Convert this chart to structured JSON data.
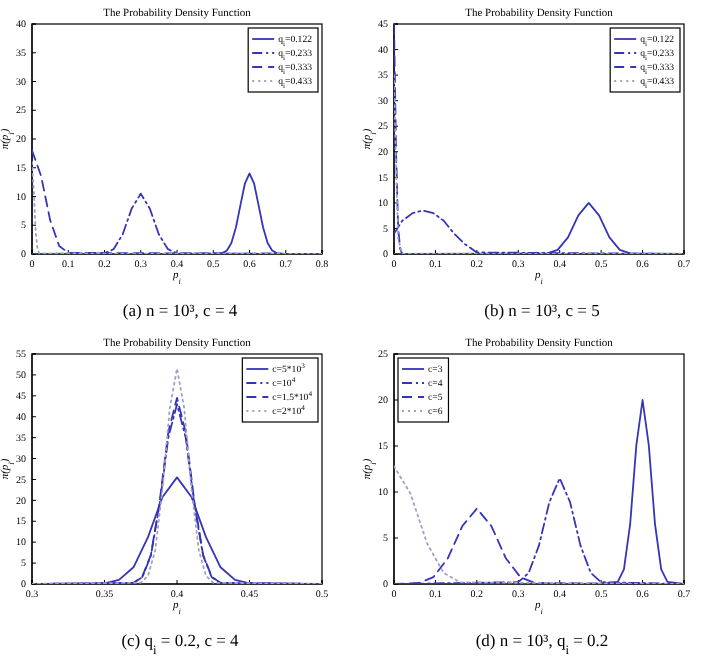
{
  "chart_data": [
    {
      "type": "line",
      "title": "The Probability Density Function",
      "xlabel": "p$_{i}$",
      "ylabel": "π(p$_{i}$)",
      "xlim": [
        0,
        0.8
      ],
      "ylim": [
        0,
        40
      ],
      "xticks": [
        0,
        0.1,
        0.2,
        0.3,
        0.4,
        0.5,
        0.6,
        0.7,
        0.8
      ],
      "yticks": [
        0,
        5,
        10,
        15,
        20,
        25,
        30,
        35,
        40
      ],
      "grid": false,
      "legend": "top right",
      "marker": "none",
      "annotations": [
        "(a) n = 10³, c = 4"
      ],
      "series": [
        {
          "name": "q$_{i}$=0.122",
          "color": "#3535b8",
          "line_style": "solid",
          "x": [
            0,
            0.5,
            0.525,
            0.5375,
            0.55,
            0.5625,
            0.575,
            0.5875,
            0.6,
            0.6125,
            0.625,
            0.6375,
            0.65,
            0.6625,
            0.675,
            0.7,
            0.8
          ],
          "values": [
            0,
            0,
            0.15,
            0.6,
            1.9,
            4.6,
            8.5,
            12.3,
            14,
            12.3,
            8.5,
            4.6,
            1.9,
            0.6,
            0.15,
            0,
            0
          ]
        },
        {
          "name": "q$_{i}$=0.233",
          "color": "#3535b8",
          "line_style": "dashdot",
          "x": [
            0,
            0.2,
            0.225,
            0.25,
            0.275,
            0.3,
            0.325,
            0.35,
            0.375,
            0.4,
            0.8
          ],
          "values": [
            0,
            0.12,
            0.84,
            3.4,
            7.9,
            10.5,
            7.9,
            3.4,
            0.84,
            0.12,
            0
          ]
        },
        {
          "name": "q$_{i}$=0.333",
          "color": "#3535b8",
          "line_style": "dashed",
          "x": [
            0,
            0.025,
            0.05,
            0.075,
            0.1,
            0.8
          ],
          "values": [
            18,
            13.6,
            5.9,
            1.4,
            0.2,
            0
          ]
        },
        {
          "name": "q$_{i}$=0.433",
          "color": "#a0a0c8",
          "line_style": "dotted",
          "x": [
            0,
            0.005,
            0.01,
            0.015,
            0.02,
            0.8
          ],
          "values": [
            16,
            11,
            4,
            1,
            0.1,
            0
          ]
        }
      ]
    },
    {
      "type": "line",
      "title": "The Probability Density Function",
      "xlabel": "p$_{i}$",
      "ylabel": "π(p$_{i}$)",
      "xlim": [
        0,
        0.7
      ],
      "ylim": [
        0,
        45
      ],
      "xticks": [
        0,
        0.1,
        0.2,
        0.3,
        0.4,
        0.5,
        0.6,
        0.7
      ],
      "yticks": [
        0,
        5,
        10,
        15,
        20,
        25,
        30,
        35,
        40,
        45
      ],
      "grid": false,
      "legend": "top right",
      "marker": "none",
      "annotations": [
        "(b) n = 10³, c = 5"
      ],
      "series": [
        {
          "name": "q$_{i}$=0.122",
          "color": "#3535b8",
          "line_style": "solid",
          "x": [
            0,
            0.37,
            0.395,
            0.42,
            0.445,
            0.47,
            0.495,
            0.52,
            0.545,
            0.57,
            0.7
          ],
          "values": [
            0,
            0.11,
            0.8,
            3.25,
            7.55,
            10,
            7.55,
            3.25,
            0.8,
            0.11,
            0
          ]
        },
        {
          "name": "q$_{i}$=0.233",
          "color": "#3535b8",
          "line_style": "dashdot",
          "x": [
            0,
            0.02,
            0.045,
            0.07,
            0.095,
            0.12,
            0.145,
            0.17,
            0.2,
            0.7
          ],
          "values": [
            4,
            6.5,
            8,
            8.5,
            8,
            6.5,
            4,
            2,
            0.3,
            0
          ]
        },
        {
          "name": "q$_{i}$=0.333",
          "color": "#3535b8",
          "line_style": "dashed",
          "x": [
            0,
            0.005,
            0.01,
            0.015,
            0.02,
            0.7
          ],
          "values": [
            45,
            20,
            5,
            1,
            0,
            0
          ]
        },
        {
          "name": "q$_{i}$=0.433",
          "color": "#a0a0c8",
          "line_style": "dotted",
          "x": [
            0,
            0.004,
            0.01,
            0.02,
            0.7
          ],
          "values": [
            35,
            20,
            3,
            0,
            0
          ]
        }
      ]
    },
    {
      "type": "line",
      "title": "The Probability Density Function",
      "xlabel": "p$_{i}$",
      "ylabel": "π(p$_{i}$)",
      "xlim": [
        0.3,
        0.5
      ],
      "ylim": [
        0,
        55
      ],
      "xticks": [
        0.3,
        0.35,
        0.4,
        0.45,
        0.5
      ],
      "yticks": [
        0,
        5,
        10,
        15,
        20,
        25,
        30,
        35,
        40,
        45,
        50,
        55
      ],
      "grid": false,
      "legend": "top right",
      "marker": "none",
      "annotations": [
        "(c) q$_{i}$ = 0.2, c = 4"
      ],
      "series": [
        {
          "name": "c=5*10$^{3}$",
          "color": "#3535b8",
          "line_style": "solid",
          "x": [
            0.3,
            0.35,
            0.36,
            0.37,
            0.38,
            0.39,
            0.4,
            0.41,
            0.42,
            0.43,
            0.44,
            0.45,
            0.5
          ],
          "values": [
            0,
            0.15,
            0.97,
            4,
            11.2,
            20.8,
            25.5,
            20.8,
            11.2,
            4,
            0.97,
            0.15,
            0
          ]
        },
        {
          "name": "c=10$^{4}$",
          "color": "#3535b8",
          "line_style": "dashdot",
          "x": [
            0.3,
            0.37,
            0.376,
            0.382,
            0.388,
            0.394,
            0.4,
            0.406,
            0.412,
            0.418,
            0.424,
            0.43,
            0.5
          ],
          "values": [
            0,
            0.26,
            1.6,
            6.8,
            19,
            35,
            43,
            35,
            19,
            6.8,
            1.6,
            0.26,
            0
          ]
        },
        {
          "name": "c=1.5*10$^{4}$",
          "color": "#3535b8",
          "line_style": "dashed",
          "x": [
            0.3,
            0.37,
            0.376,
            0.382,
            0.388,
            0.394,
            0.4,
            0.406,
            0.412,
            0.418,
            0.424,
            0.43,
            0.5
          ],
          "values": [
            0,
            0.27,
            1.7,
            7,
            19.6,
            36.3,
            44.5,
            36.3,
            19.6,
            7,
            1.7,
            0.27,
            0
          ]
        },
        {
          "name": "c=2*10$^{4}$",
          "color": "#a0a0c8",
          "line_style": "dotted",
          "x": [
            0.3,
            0.375,
            0.38,
            0.385,
            0.39,
            0.395,
            0.4,
            0.405,
            0.41,
            0.415,
            0.42,
            0.425,
            0.5
          ],
          "values": [
            0,
            0.3,
            1.96,
            8.1,
            22.7,
            42,
            51.5,
            42,
            22.7,
            8.1,
            1.96,
            0.3,
            0
          ]
        }
      ]
    },
    {
      "type": "line",
      "title": "The Probability Density Function",
      "xlabel": "p$_{i}$",
      "ylabel": "π(p$_{i}$)",
      "xlim": [
        0,
        0.7
      ],
      "ylim": [
        0,
        25
      ],
      "xticks": [
        0,
        0.1,
        0.2,
        0.3,
        0.4,
        0.5,
        0.6,
        0.7
      ],
      "yticks": [
        0,
        5,
        10,
        15,
        20,
        25
      ],
      "grid": false,
      "legend": "top left",
      "marker": "none",
      "annotations": [
        "(d) n = 10³, q$_{i}$ = 0.2"
      ],
      "series": [
        {
          "name": "c=3",
          "color": "#3535b8",
          "line_style": "solid",
          "x": [
            0,
            0.5,
            0.54,
            0.555,
            0.57,
            0.585,
            0.6,
            0.615,
            0.63,
            0.645,
            0.66,
            0.7
          ],
          "values": [
            0,
            0,
            0.22,
            1.6,
            6.5,
            15.1,
            20,
            15.1,
            6.5,
            1.6,
            0.22,
            0
          ]
        },
        {
          "name": "c=4",
          "color": "#3535b8",
          "line_style": "dashdot",
          "x": [
            0,
            0.3,
            0.325,
            0.35,
            0.375,
            0.4,
            0.425,
            0.45,
            0.475,
            0.5,
            0.7
          ],
          "values": [
            0,
            0.2,
            1.2,
            4.2,
            8.9,
            11.5,
            8.9,
            4.2,
            1.2,
            0.2,
            0
          ]
        },
        {
          "name": "c=5",
          "color": "#3535b8",
          "line_style": "dashed",
          "x": [
            0,
            0.06,
            0.095,
            0.13,
            0.165,
            0.2,
            0.235,
            0.27,
            0.305,
            0.34,
            0.7
          ],
          "values": [
            0,
            0.11,
            0.75,
            2.8,
            6.3,
            8.2,
            6.3,
            2.8,
            0.75,
            0.11,
            0
          ]
        },
        {
          "name": "c=6",
          "color": "#a0a0c8",
          "line_style": "dotted",
          "x": [
            0,
            0.04,
            0.08,
            0.12,
            0.16,
            0.7
          ],
          "values": [
            12.8,
            9.8,
            4.4,
            1.2,
            0.18,
            0
          ]
        }
      ]
    }
  ]
}
